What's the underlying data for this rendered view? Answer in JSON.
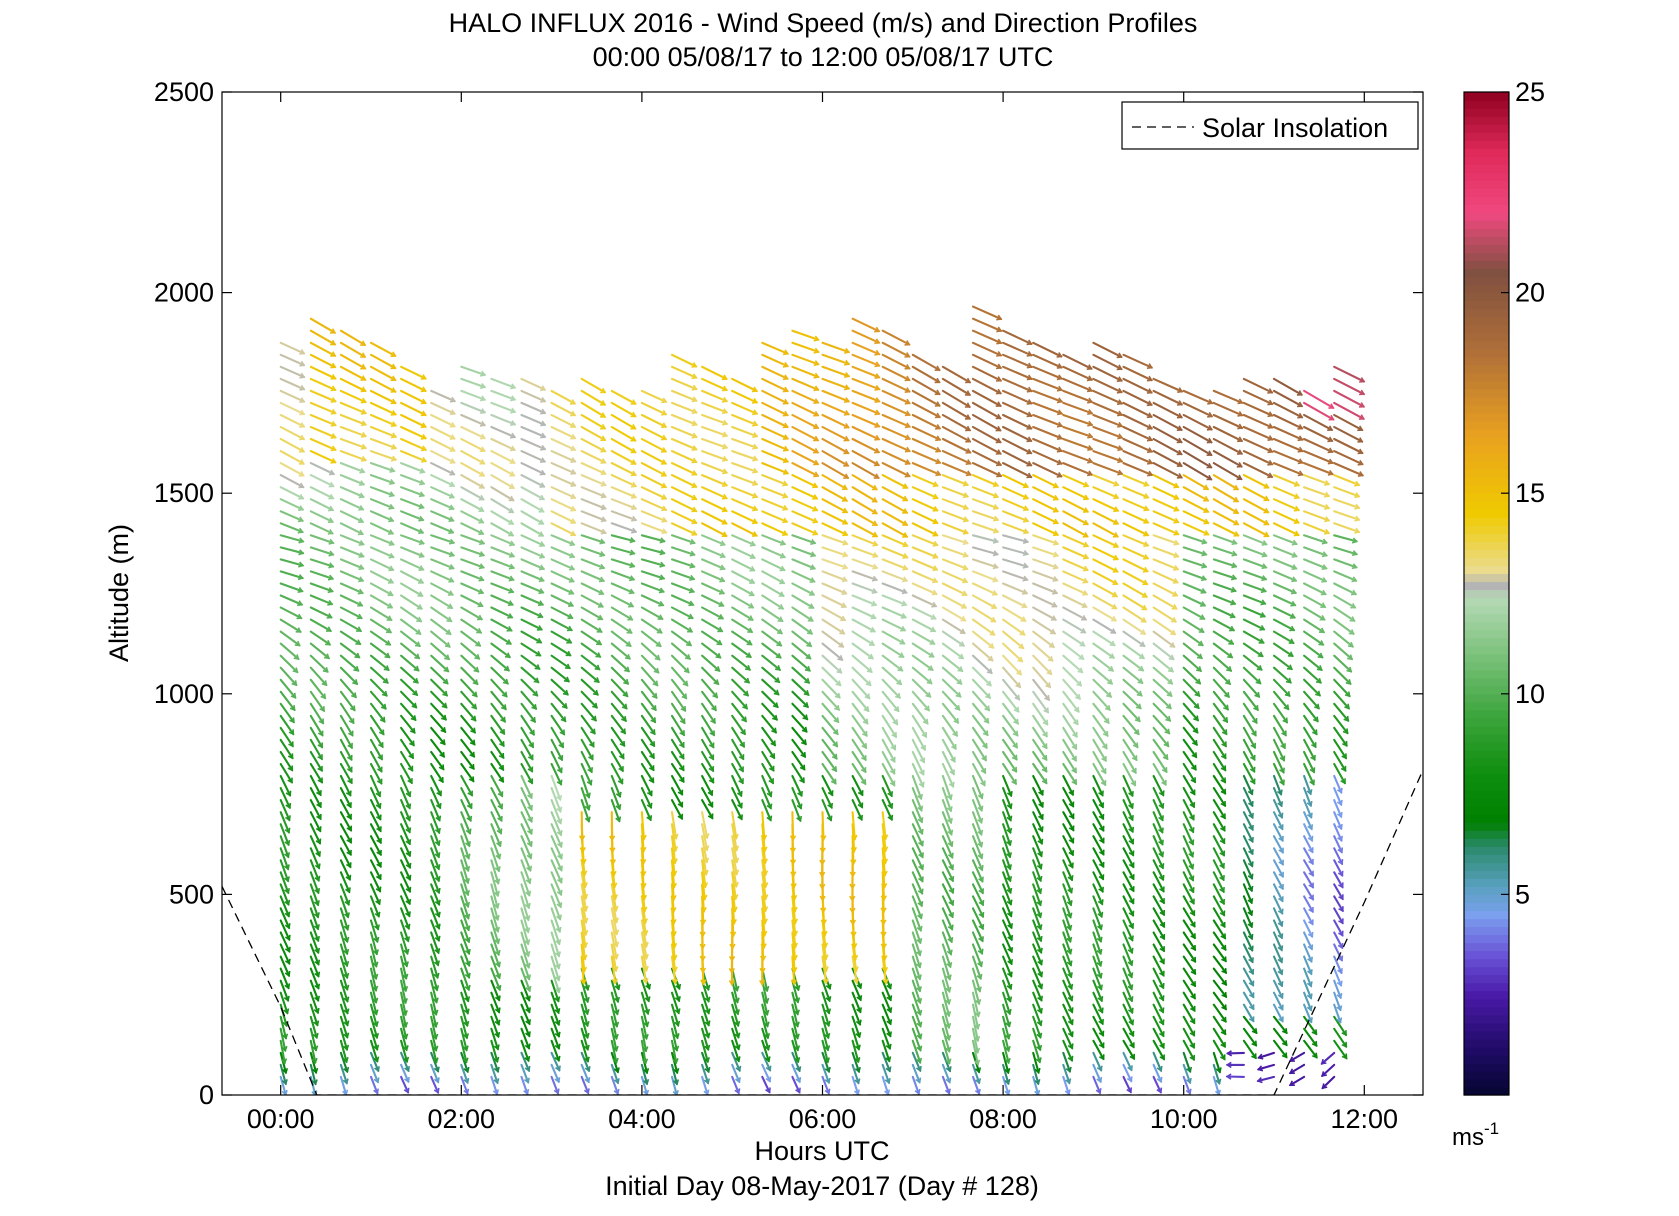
{
  "chart_data": {
    "type": "wind-barb-profile",
    "title_line1": "HALO INFLUX 2016 - Wind Speed (m/s) and Direction Profiles",
    "title_line2": "00:00 05/08/17 to 12:00 05/08/17  UTC",
    "xlabel": "Hours UTC",
    "footer": "Initial Day 08-May-2017 (Day # 128)",
    "ylabel": "Altitude (m)",
    "xlim": [
      -0.65,
      12.65
    ],
    "ylim": [
      0,
      2500
    ],
    "x_ticks": [
      {
        "value": 0,
        "label": "00:00"
      },
      {
        "value": 2,
        "label": "02:00"
      },
      {
        "value": 4,
        "label": "04:00"
      },
      {
        "value": 6,
        "label": "06:00"
      },
      {
        "value": 8,
        "label": "08:00"
      },
      {
        "value": 10,
        "label": "10:00"
      },
      {
        "value": 12,
        "label": "12:00"
      }
    ],
    "y_ticks": [
      {
        "value": 0,
        "label": "0"
      },
      {
        "value": 500,
        "label": "500"
      },
      {
        "value": 1000,
        "label": "1000"
      },
      {
        "value": 1500,
        "label": "1500"
      },
      {
        "value": 2000,
        "label": "2000"
      },
      {
        "value": 2500,
        "label": "2500"
      }
    ],
    "legend": {
      "label": "Solar Insolation",
      "position": "top-right",
      "style": "dashed"
    },
    "solar_insolation": {
      "x": [
        -0.65,
        0.0,
        0.4,
        11.0,
        12.0,
        12.65
      ],
      "y": [
        520,
        220,
        0,
        0,
        480,
        810
      ]
    },
    "colorbar": {
      "min": 0,
      "max": 25,
      "unit_base": "ms",
      "unit_exp": "-1",
      "ticks": [
        {
          "value": 5,
          "label": "5"
        },
        {
          "value": 10,
          "label": "10"
        },
        {
          "value": 15,
          "label": "15"
        },
        {
          "value": 20,
          "label": "20"
        },
        {
          "value": 25,
          "label": "25"
        }
      ],
      "stops": [
        {
          "v": 0,
          "c": "#050530"
        },
        {
          "v": 1,
          "c": "#1c0a60"
        },
        {
          "v": 2.5,
          "c": "#4a1aa8"
        },
        {
          "v": 3.5,
          "c": "#6a55d8"
        },
        {
          "v": 4.5,
          "c": "#7aa0ee"
        },
        {
          "v": 5.2,
          "c": "#5aa0c0"
        },
        {
          "v": 6.2,
          "c": "#2a8a6a"
        },
        {
          "v": 6.8,
          "c": "#008000"
        },
        {
          "v": 8,
          "c": "#0e8e0e"
        },
        {
          "v": 9.5,
          "c": "#3ea63e"
        },
        {
          "v": 11,
          "c": "#7cc27c"
        },
        {
          "v": 12.4,
          "c": "#b6dab6"
        },
        {
          "v": 12.7,
          "c": "#b4b4b4"
        },
        {
          "v": 13.1,
          "c": "#eadc8c"
        },
        {
          "v": 14.5,
          "c": "#f0ca00"
        },
        {
          "v": 16.5,
          "c": "#e8a020"
        },
        {
          "v": 18.5,
          "c": "#b07038"
        },
        {
          "v": 20.5,
          "c": "#805040"
        },
        {
          "v": 22,
          "c": "#f04880"
        },
        {
          "v": 23.5,
          "c": "#e02a5a"
        },
        {
          "v": 25,
          "c": "#900020"
        }
      ]
    },
    "profile_times_hr": [
      0,
      0.333,
      0.667,
      1,
      1.333,
      1.667,
      2,
      2.333,
      2.667,
      3,
      3.333,
      3.667,
      4,
      4.333,
      4.667,
      5,
      5.333,
      5.667,
      6,
      6.333,
      6.667,
      7,
      7.333,
      7.667,
      8,
      8.333,
      8.667,
      9,
      9.333,
      9.667,
      10,
      10.333,
      10.667,
      11,
      11.333,
      11.667
    ],
    "profile_top_m": [
      1900,
      1940,
      1910,
      1880,
      1830,
      1760,
      1820,
      1800,
      1790,
      1780,
      1790,
      1780,
      1770,
      1860,
      1840,
      1800,
      1900,
      1910,
      1900,
      1940,
      1910,
      1860,
      1840,
      1990,
      1920,
      1880,
      1850,
      1880,
      1860,
      1800,
      1780,
      1760,
      1800,
      1790,
      1780,
      1820
    ],
    "gate_spacing_m": 30,
    "min_altitude_m": 45,
    "wind_regimes": [
      {
        "t": [
          0,
          12
        ],
        "z": [
          1500,
          2000
        ],
        "speed": 14,
        "dir_deg": 295
      },
      {
        "t": [
          0,
          12
        ],
        "z": [
          1000,
          1500
        ],
        "speed": 9.5,
        "dir_deg": 285
      },
      {
        "t": [
          3.3,
          7
        ],
        "z": [
          350,
          700
        ],
        "speed": 14.5,
        "dir_deg": 350
      },
      {
        "t": [
          8,
          12
        ],
        "z": [
          200,
          800
        ],
        "speed": 8,
        "dir_deg": 320
      },
      {
        "t": [
          10.8,
          12
        ],
        "z": [
          0,
          150
        ],
        "speed": 2.5,
        "dir_deg": 90
      }
    ]
  }
}
